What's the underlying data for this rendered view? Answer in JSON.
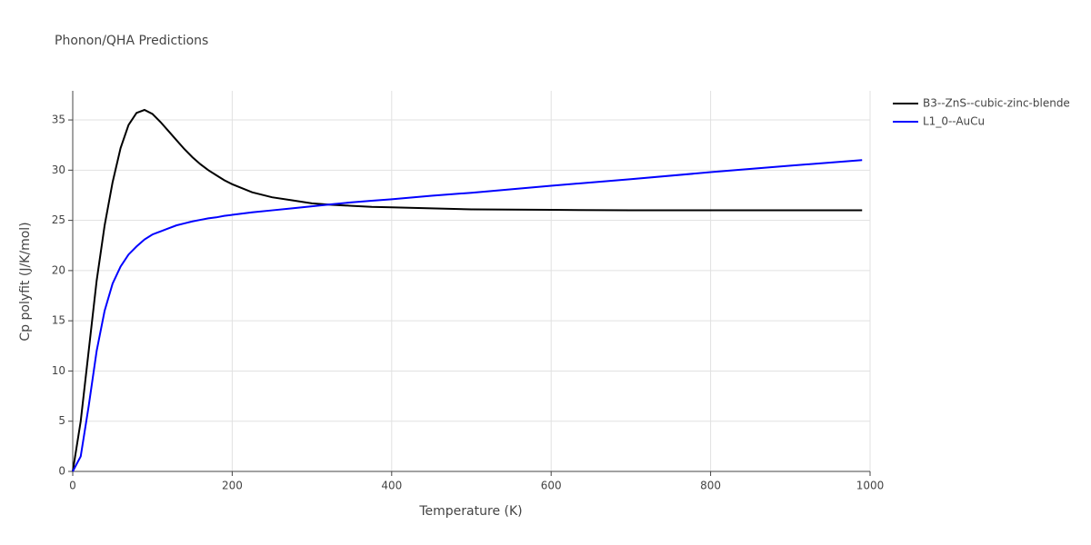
{
  "chart_data": {
    "type": "line",
    "title": "Phonon/QHA Predictions",
    "x_label": "Temperature (K)",
    "y_label": "Cp polyfit (J/K/mol)",
    "x": [
      0,
      10,
      20,
      30,
      40,
      50,
      60,
      70,
      80,
      90,
      100,
      110,
      120,
      130,
      140,
      150,
      160,
      170,
      180,
      190,
      200,
      225,
      250,
      275,
      300,
      325,
      350,
      375,
      400,
      450,
      500,
      550,
      600,
      700,
      800,
      900,
      990
    ],
    "series": [
      {
        "name": "B3--ZnS--cubic-zinc-blende",
        "color": "#000000",
        "values": [
          0,
          5,
          12,
          19,
          24.5,
          28.8,
          32.2,
          34.5,
          35.7,
          36,
          35.6,
          34.8,
          33.9,
          33,
          32.1,
          31.3,
          30.6,
          30,
          29.5,
          29,
          28.6,
          27.8,
          27.3,
          27,
          26.7,
          26.55,
          26.45,
          26.35,
          26.3,
          26.2,
          26.1,
          26.07,
          26.05,
          26,
          26,
          26,
          26
        ]
      },
      {
        "name": "L1_0--AuCu",
        "color": "#0000ff",
        "values": [
          0,
          1.5,
          6.5,
          12,
          16,
          18.7,
          20.4,
          21.6,
          22.4,
          23.1,
          23.6,
          23.9,
          24.2,
          24.5,
          24.7,
          24.9,
          25.05,
          25.2,
          25.3,
          25.45,
          25.55,
          25.8,
          26,
          26.2,
          26.4,
          26.6,
          26.8,
          26.95,
          27.1,
          27.45,
          27.75,
          28.1,
          28.45,
          29.1,
          29.8,
          30.45,
          31
        ]
      }
    ],
    "xlim": [
      0,
      1000
    ],
    "xticks": [
      0,
      200,
      400,
      600,
      800,
      1000
    ],
    "ylim": [
      0,
      37.9
    ],
    "yticks": [
      0,
      5,
      10,
      15,
      20,
      25,
      30,
      35
    ],
    "grid": true
  }
}
